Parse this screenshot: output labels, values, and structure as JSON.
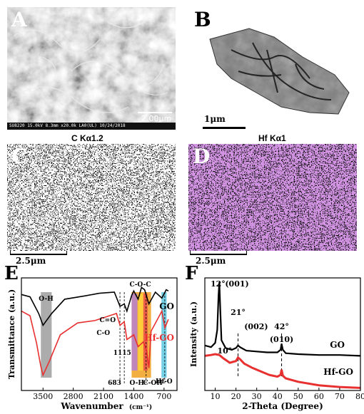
{
  "panel_a": {
    "label": "A",
    "scale_bar_text": "2.00μm",
    "info_bar_text": "SU8220 15.0kV 8.3mm x20.0k LA0(UL) 10/24/2018"
  },
  "panel_b": {
    "label": "B",
    "scale_bar_text": "1μm"
  },
  "panel_c": {
    "label": "C",
    "title": "C Kα1.2",
    "scale_bar_text": "2.5μm"
  },
  "panel_d": {
    "label": "D",
    "title": "Hf Kα1",
    "scale_bar_text": "2.5μm"
  },
  "colors": {
    "go": "#000000",
    "hf_go": "#e83030",
    "map_d": "#a64cc4",
    "oh_band": "#9e9e9e",
    "hfo_band": "#5ec8e0"
  },
  "chart_data": [
    {
      "panel_label": "E",
      "type": "line",
      "xlabel": "Wavenumber",
      "xlabel_unit": "(cm⁻¹)",
      "ylabel": "Transmittance (a.u.)",
      "x_ticks": [
        "3500",
        "2800",
        "2100",
        "1400",
        "700"
      ],
      "xlim": [
        4000,
        400
      ],
      "series": [
        {
          "name": "GO",
          "x": [
            4000,
            3800,
            3600,
            3500,
            3300,
            3000,
            2500,
            2200,
            1850,
            1720,
            1620,
            1560,
            1450,
            1400,
            1300,
            1220,
            1150,
            1050,
            900,
            750,
            650,
            600
          ],
          "y": [
            86,
            84,
            70,
            60,
            70,
            82,
            85,
            87,
            88,
            76,
            78,
            72,
            85,
            89,
            82,
            92,
            90,
            78,
            88,
            83,
            90,
            89
          ]
        },
        {
          "name": "Hf-GO",
          "x": [
            4000,
            3800,
            3650,
            3550,
            3500,
            3350,
            3100,
            2700,
            2300,
            1800,
            1720,
            1620,
            1560,
            1400,
            1300,
            1180,
            1100,
            1050,
            1000,
            750,
            680,
            600
          ],
          "y": [
            72,
            68,
            45,
            25,
            18,
            30,
            52,
            62,
            64,
            70,
            60,
            63,
            48,
            52,
            42,
            46,
            38,
            24,
            55,
            72,
            58,
            65
          ]
        }
      ],
      "annotations": [
        "O-H",
        "C=O",
        "C-O",
        "C-O-C",
        "1115",
        "O-H",
        "C-OH",
        "Hf-O",
        "683"
      ],
      "bands": [
        {
          "name": "O-H",
          "from": 3550,
          "to": 3300,
          "color": "#9e9e9e"
        },
        {
          "name": "C-O-C / C-OH",
          "from": 1450,
          "to": 1000,
          "color": "#f0a020"
        },
        {
          "name": "Hf-O",
          "from": 760,
          "to": 640,
          "color": "#5ec8e0"
        }
      ],
      "legend_labels": [
        "GO",
        "Hf-GO"
      ],
      "grid": false
    },
    {
      "panel_label": "F",
      "type": "line",
      "xlabel": "2-Theta (Degree)",
      "ylabel": "Intensity (a.u.)",
      "x_ticks": [
        "10",
        "20",
        "30",
        "40",
        "50",
        "60",
        "70",
        "80"
      ],
      "xlim": [
        5,
        80
      ],
      "series": [
        {
          "name": "GO",
          "x": [
            5,
            8,
            10,
            11,
            11.6,
            12,
            12.5,
            13,
            15,
            18,
            20,
            21,
            22,
            25,
            30,
            35,
            40,
            41.5,
            42,
            42.6,
            44,
            50,
            60,
            70,
            80
          ],
          "y": [
            52,
            50,
            55,
            70,
            110,
            125,
            90,
            58,
            49,
            47,
            49,
            52,
            50,
            46,
            45,
            44,
            44,
            47,
            54,
            47,
            43,
            42,
            41,
            41,
            40
          ]
        },
        {
          "name": "Hf-GO",
          "x": [
            5,
            8,
            10,
            12,
            14,
            17,
            20,
            21,
            22,
            24,
            28,
            32,
            36,
            40,
            41.5,
            42,
            42.6,
            44,
            50,
            60,
            70,
            80
          ],
          "y": [
            40,
            41,
            42,
            41,
            37,
            32,
            34,
            38,
            36,
            31,
            26,
            22,
            18,
            16,
            18,
            24,
            17,
            14,
            10,
            6,
            4,
            3
          ]
        }
      ],
      "annotations": [
        "12°",
        "(001)",
        "21°",
        "(002)",
        "42°",
        "(010)",
        "10°"
      ],
      "legend_labels": [
        "GO",
        "Hf-GO"
      ],
      "grid": false
    }
  ]
}
